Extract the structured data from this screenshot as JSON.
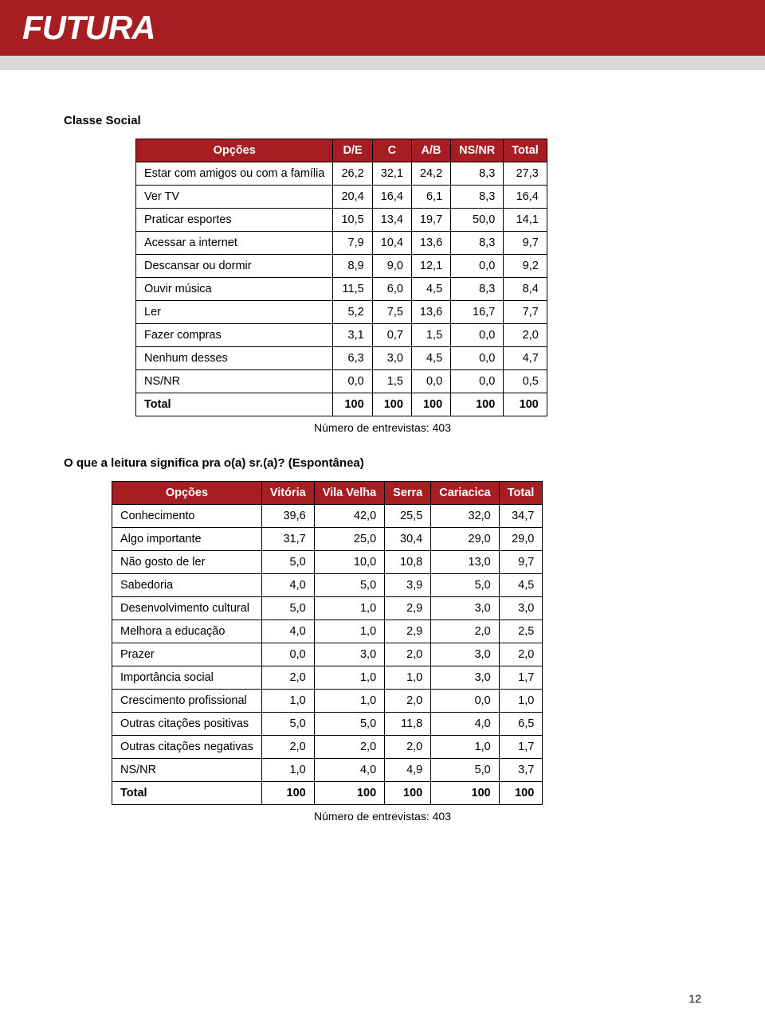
{
  "brand": {
    "logo_text": "FUTURA"
  },
  "colors": {
    "header_bg": "#a61e22",
    "subbar_bg": "#d9d9d9",
    "table_header_bg": "#a61e22",
    "table_header_fg": "#ffffff",
    "border": "#000000",
    "page_bg": "#ffffff",
    "text": "#000000"
  },
  "typography": {
    "body_font": "Arial",
    "body_size_pt": 11,
    "title_weight": "bold"
  },
  "section1": {
    "title": "Classe Social",
    "headers": [
      "Opções",
      "D/E",
      "C",
      "A/B",
      "NS/NR",
      "Total"
    ],
    "rows": [
      {
        "label": "Estar com amigos ou com a família",
        "v": [
          "26,2",
          "32,1",
          "24,2",
          "8,3",
          "27,3"
        ]
      },
      {
        "label": "Ver TV",
        "v": [
          "20,4",
          "16,4",
          "6,1",
          "8,3",
          "16,4"
        ]
      },
      {
        "label": "Praticar esportes",
        "v": [
          "10,5",
          "13,4",
          "19,7",
          "50,0",
          "14,1"
        ]
      },
      {
        "label": "Acessar a internet",
        "v": [
          "7,9",
          "10,4",
          "13,6",
          "8,3",
          "9,7"
        ]
      },
      {
        "label": "Descansar ou dormir",
        "v": [
          "8,9",
          "9,0",
          "12,1",
          "0,0",
          "9,2"
        ]
      },
      {
        "label": "Ouvir música",
        "v": [
          "11,5",
          "6,0",
          "4,5",
          "8,3",
          "8,4"
        ]
      },
      {
        "label": "Ler",
        "v": [
          "5,2",
          "7,5",
          "13,6",
          "16,7",
          "7,7"
        ]
      },
      {
        "label": "Fazer compras",
        "v": [
          "3,1",
          "0,7",
          "1,5",
          "0,0",
          "2,0"
        ]
      },
      {
        "label": "Nenhum desses",
        "v": [
          "6,3",
          "3,0",
          "4,5",
          "0,0",
          "4,7"
        ]
      },
      {
        "label": "NS/NR",
        "v": [
          "0,0",
          "1,5",
          "0,0",
          "0,0",
          "0,5"
        ]
      }
    ],
    "total": {
      "label": "Total",
      "v": [
        "100",
        "100",
        "100",
        "100",
        "100"
      ]
    },
    "footnote": "Número de entrevistas: 403"
  },
  "section2": {
    "title": "O que a leitura significa pra o(a) sr.(a)? (Espontânea)",
    "headers": [
      "Opções",
      "Vitória",
      "Vila Velha",
      "Serra",
      "Cariacica",
      "Total"
    ],
    "rows": [
      {
        "label": "Conhecimento",
        "v": [
          "39,6",
          "42,0",
          "25,5",
          "32,0",
          "34,7"
        ]
      },
      {
        "label": "Algo importante",
        "v": [
          "31,7",
          "25,0",
          "30,4",
          "29,0",
          "29,0"
        ]
      },
      {
        "label": "Não gosto de ler",
        "v": [
          "5,0",
          "10,0",
          "10,8",
          "13,0",
          "9,7"
        ]
      },
      {
        "label": "Sabedoria",
        "v": [
          "4,0",
          "5,0",
          "3,9",
          "5,0",
          "4,5"
        ]
      },
      {
        "label": "Desenvolvimento cultural",
        "v": [
          "5,0",
          "1,0",
          "2,9",
          "3,0",
          "3,0"
        ]
      },
      {
        "label": "Melhora a educação",
        "v": [
          "4,0",
          "1,0",
          "2,9",
          "2,0",
          "2,5"
        ]
      },
      {
        "label": "Prazer",
        "v": [
          "0,0",
          "3,0",
          "2,0",
          "3,0",
          "2,0"
        ]
      },
      {
        "label": "Importância social",
        "v": [
          "2,0",
          "1,0",
          "1,0",
          "3,0",
          "1,7"
        ]
      },
      {
        "label": "Crescimento profissional",
        "v": [
          "1,0",
          "1,0",
          "2,0",
          "0,0",
          "1,0"
        ]
      },
      {
        "label": "Outras citações positivas",
        "v": [
          "5,0",
          "5,0",
          "11,8",
          "4,0",
          "6,5"
        ]
      },
      {
        "label": "Outras citações negativas",
        "v": [
          "2,0",
          "2,0",
          "2,0",
          "1,0",
          "1,7"
        ]
      },
      {
        "label": "NS/NR",
        "v": [
          "1,0",
          "4,0",
          "4,9",
          "5,0",
          "3,7"
        ]
      }
    ],
    "total": {
      "label": "Total",
      "v": [
        "100",
        "100",
        "100",
        "100",
        "100"
      ]
    },
    "footnote": "Número de entrevistas: 403"
  },
  "page_number": "12"
}
